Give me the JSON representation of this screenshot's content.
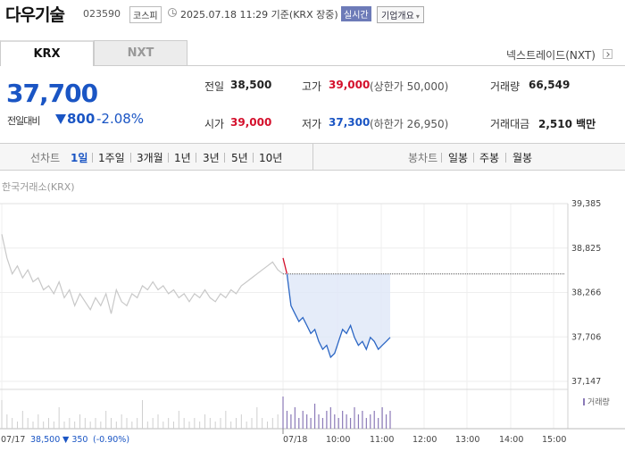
{
  "header": {
    "stock_name": "다우기술",
    "stock_code": "023590",
    "market": "코스피",
    "timestamp": "2025.07.18 11:29 기준(KRX 장중)",
    "realtime_badge": "실시간",
    "company_info_label": "기업개요"
  },
  "tabs": {
    "krx": "KRX",
    "nxt": "NXT",
    "nxt_link": "넥스트레이드(NXT)"
  },
  "quote": {
    "price": "37,700",
    "change_label": "전일대비",
    "change_amount": "800",
    "change_pct": "-2.08%"
  },
  "stats": {
    "prev_close_label": "전일",
    "prev_close": "38,500",
    "high_label": "고가",
    "high": "39,000",
    "upper_limit": "(상한가 50,000)",
    "volume_label": "거래량",
    "volume": "66,549",
    "open_label": "시가",
    "open": "39,000",
    "low_label": "저가",
    "low": "37,300",
    "lower_limit": "(하한가 26,950)",
    "value_label": "거래대금",
    "value": "2,510 백만"
  },
  "periods": {
    "line_label": "선차트",
    "line_items": [
      "1일",
      "1주일",
      "3개월",
      "1년",
      "3년",
      "5년",
      "10년"
    ],
    "candle_label": "봉차트",
    "candle_items": [
      "일봉",
      "주봉",
      "월봉"
    ],
    "active": "1일"
  },
  "chart_caption": "한국거래소(KRX)",
  "volume_legend": "거래량",
  "footer": {
    "prev_date": "07/17",
    "prev_close": "38,500",
    "prev_change": "▼ 350",
    "prev_change_pct": "(-0.90%)"
  },
  "colors": {
    "down": "#1a55c4",
    "up": "#d4102c",
    "previous_day_line": "#c8c8c8",
    "volume_bar": "#8b7ab8"
  },
  "chart_data": {
    "type": "line",
    "y_ticks": [
      "39,385",
      "38,825",
      "38,266",
      "37,706",
      "37,147"
    ],
    "y_tick_values": [
      39385,
      38825,
      38266,
      37706,
      37147
    ],
    "ylim": [
      37147,
      39385
    ],
    "x_ticks": [
      "07/17",
      "07/18",
      "10:00",
      "11:00",
      "12:00",
      "13:00",
      "14:00",
      "15:00"
    ],
    "reference_price": 38500,
    "series": [
      {
        "day": "07/17",
        "values": [
          39000,
          38700,
          38500,
          38600,
          38450,
          38550,
          38400,
          38450,
          38300,
          38350,
          38250,
          38400,
          38200,
          38300,
          38100,
          38250,
          38150,
          38050,
          38200,
          38100,
          38250,
          38000,
          38300,
          38150,
          38100,
          38250,
          38200,
          38350,
          38300,
          38400,
          38300,
          38350,
          38250,
          38300,
          38200,
          38250,
          38150,
          38250,
          38200,
          38300,
          38200,
          38150,
          38250,
          38200,
          38300,
          38250,
          38350,
          38400,
          38450,
          38500,
          38550,
          38600,
          38650,
          38550,
          38500
        ]
      },
      {
        "day": "07/18",
        "values": [
          38700,
          38500,
          38100,
          38000,
          37900,
          37950,
          37850,
          37750,
          37800,
          37650,
          37550,
          37600,
          37450,
          37500,
          37650,
          37800,
          37750,
          37850,
          37700,
          37600,
          37650,
          37550,
          37700,
          37650,
          37550,
          37600,
          37650,
          37700
        ]
      }
    ],
    "volume": {
      "07/17": [
        8,
        4,
        3,
        2,
        5,
        3,
        2,
        4,
        2,
        3,
        2,
        6,
        2,
        3,
        2,
        4,
        3,
        2,
        3,
        2,
        5,
        3,
        2,
        4,
        3,
        2,
        3,
        8,
        2,
        3,
        4,
        2,
        3,
        2,
        5,
        3,
        2,
        3,
        2,
        4,
        3,
        2,
        3,
        5,
        2,
        3,
        4,
        2,
        3,
        6,
        3,
        2,
        3,
        4,
        3
      ],
      "07/18": [
        9,
        5,
        4,
        6,
        3,
        5,
        4,
        3,
        7,
        4,
        3,
        5,
        6,
        4,
        3,
        5,
        4,
        3,
        6,
        4,
        5,
        3,
        4,
        5,
        3,
        6,
        4,
        5
      ]
    }
  }
}
